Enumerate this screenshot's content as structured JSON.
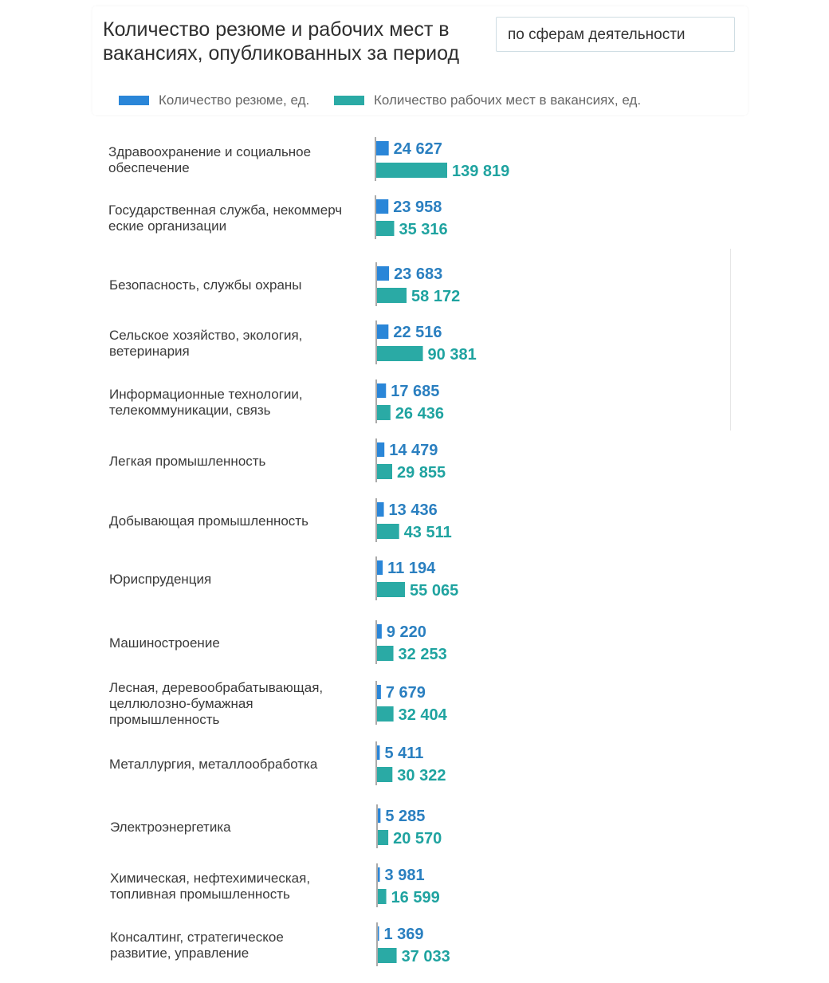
{
  "header": {
    "title": "Количество резюме и рабочих мест в вакансиях, опубликованных за период",
    "period_select_value": "по сферам деятельности"
  },
  "colors": {
    "resumes": "#2a86d8",
    "vacancies": "#2aaaa5",
    "resumes_label": "#2a7fc0",
    "vacancies_label": "#1fa3a0"
  },
  "chart_data": {
    "type": "bar",
    "orientation": "horizontal",
    "title": "Количество резюме и рабочих мест в вакансиях, опубликованных за период",
    "categories": [
      "Здравоохранение и социальное обеспечение",
      "Государственная служба, некоммерческие организации",
      "Безопасность, службы охраны",
      "Сельское хозяйство, экология, ветеринария",
      "Информационные технологии, телекоммуникации, связь",
      "Легкая промышленность",
      "Добывающая промышленность",
      "Юриспруденция",
      "Машиностроение",
      "Лесная, деревообрабатывающая, целлюлозно-бумажная промышленность",
      "Металлургия, металлообработка",
      "Электроэнергетика",
      "Химическая, нефтехимическая, топливная промышленность",
      "Консалтинг, стратегическое развитие, управление"
    ],
    "series": [
      {
        "name": "Количество резюме, ед.",
        "values": [
          24627,
          23958,
          23683,
          22516,
          17685,
          14479,
          13436,
          11194,
          9220,
          7679,
          5411,
          5285,
          3981,
          1369
        ],
        "labels": [
          "24 627",
          "23 958",
          "23 683",
          "22 516",
          "17 685",
          "14 479",
          "13 436",
          "11 194",
          "9 220",
          "7 679",
          "5 411",
          "5 285",
          "3 981",
          "1 369"
        ]
      },
      {
        "name": "Количество рабочих мест в вакансиях, ед.",
        "values": [
          139819,
          35316,
          58172,
          90381,
          26436,
          29855,
          43511,
          55065,
          32253,
          32404,
          30322,
          20570,
          16599,
          37033
        ],
        "labels": [
          "139 819",
          "35 316",
          "58 172",
          "90 381",
          "26 436",
          "29 855",
          "43 511",
          "55 065",
          "32 253",
          "32 404",
          "30 322",
          "20 570",
          "16 599",
          "37 033"
        ]
      }
    ],
    "legend_position": "top-left",
    "grid": false
  }
}
